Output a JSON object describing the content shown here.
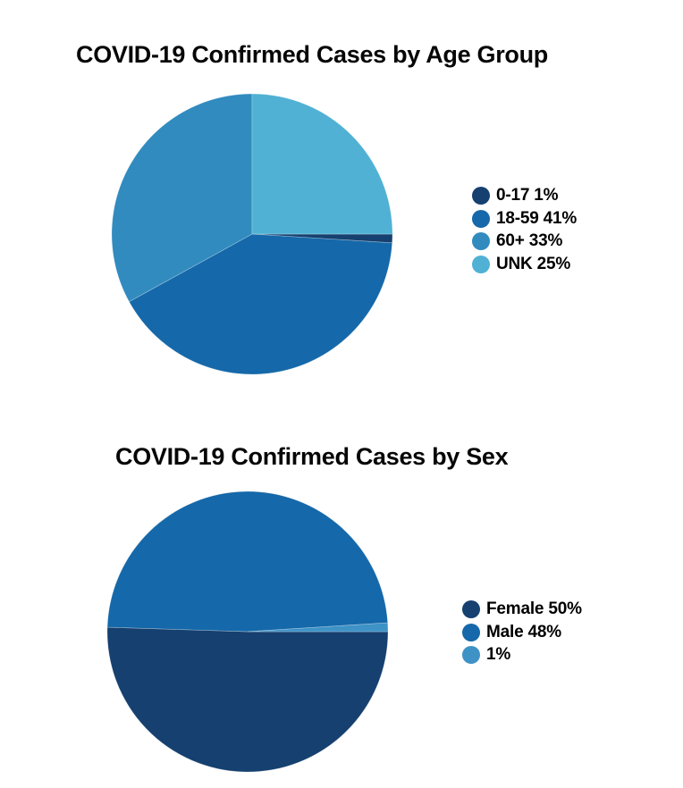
{
  "page": {
    "background_color": "#ffffff",
    "text_color": "#060606"
  },
  "chart_data": [
    {
      "type": "pie",
      "title": "COVID-19 Confirmed Cases by Age Group",
      "legend_position": "right",
      "start_angle_deg": 90,
      "direction": "clockwise",
      "slices": [
        {
          "label": "0-17",
          "value": 1,
          "legend_text": "0-17 1%",
          "color": "#15406F"
        },
        {
          "label": "18-59",
          "value": 41,
          "legend_text": "18-59 41%",
          "color": "#1568A9"
        },
        {
          "label": "60+",
          "value": 33,
          "legend_text": "60+ 33%",
          "color": "#318BBF"
        },
        {
          "label": "UNK",
          "value": 25,
          "legend_text": "UNK 25%",
          "color": "#50B1D4"
        }
      ]
    },
    {
      "type": "pie",
      "title": "COVID-19 Confirmed Cases by Sex",
      "legend_position": "right",
      "start_angle_deg": 90,
      "direction": "clockwise",
      "slices": [
        {
          "label": "Female",
          "value": 50,
          "legend_text": "Female 50%",
          "color": "#15406F"
        },
        {
          "label": "Male",
          "value": 48,
          "legend_text": "Male 48%",
          "color": "#1568A9"
        },
        {
          "label": "",
          "value": 1,
          "legend_text": "1%",
          "color": "#3E92C6"
        }
      ]
    }
  ]
}
